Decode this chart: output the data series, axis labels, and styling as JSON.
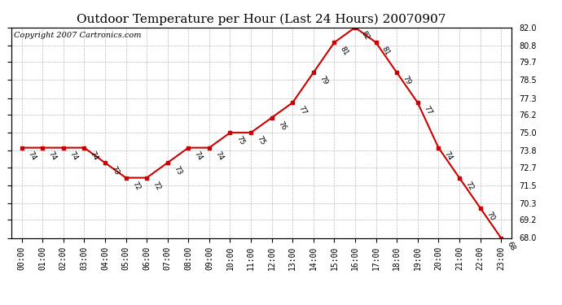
{
  "title": "Outdoor Temperature per Hour (Last 24 Hours) 20070907",
  "copyright": "Copyright 2007 Cartronics.com",
  "hours": [
    "00:00",
    "01:00",
    "02:00",
    "03:00",
    "04:00",
    "05:00",
    "06:00",
    "07:00",
    "08:00",
    "09:00",
    "10:00",
    "11:00",
    "12:00",
    "13:00",
    "14:00",
    "15:00",
    "16:00",
    "17:00",
    "18:00",
    "19:00",
    "20:00",
    "21:00",
    "22:00",
    "23:00"
  ],
  "temps": [
    74,
    74,
    74,
    74,
    73,
    72,
    72,
    73,
    74,
    74,
    75,
    75,
    76,
    77,
    79,
    81,
    82,
    81,
    79,
    77,
    74,
    72,
    70,
    68
  ],
  "line_color": "#cc0000",
  "marker_color": "#cc0000",
  "bg_color": "#ffffff",
  "grid_color": "#bbbbbb",
  "title_fontsize": 11,
  "copyright_fontsize": 7,
  "label_fontsize": 6.5,
  "tick_fontsize": 7,
  "ylim_min": 68.0,
  "ylim_max": 82.0,
  "ytick_right_vals": [
    68.0,
    69.2,
    70.3,
    71.5,
    72.7,
    73.8,
    75.0,
    76.2,
    77.3,
    78.5,
    79.7,
    80.8,
    82.0
  ]
}
